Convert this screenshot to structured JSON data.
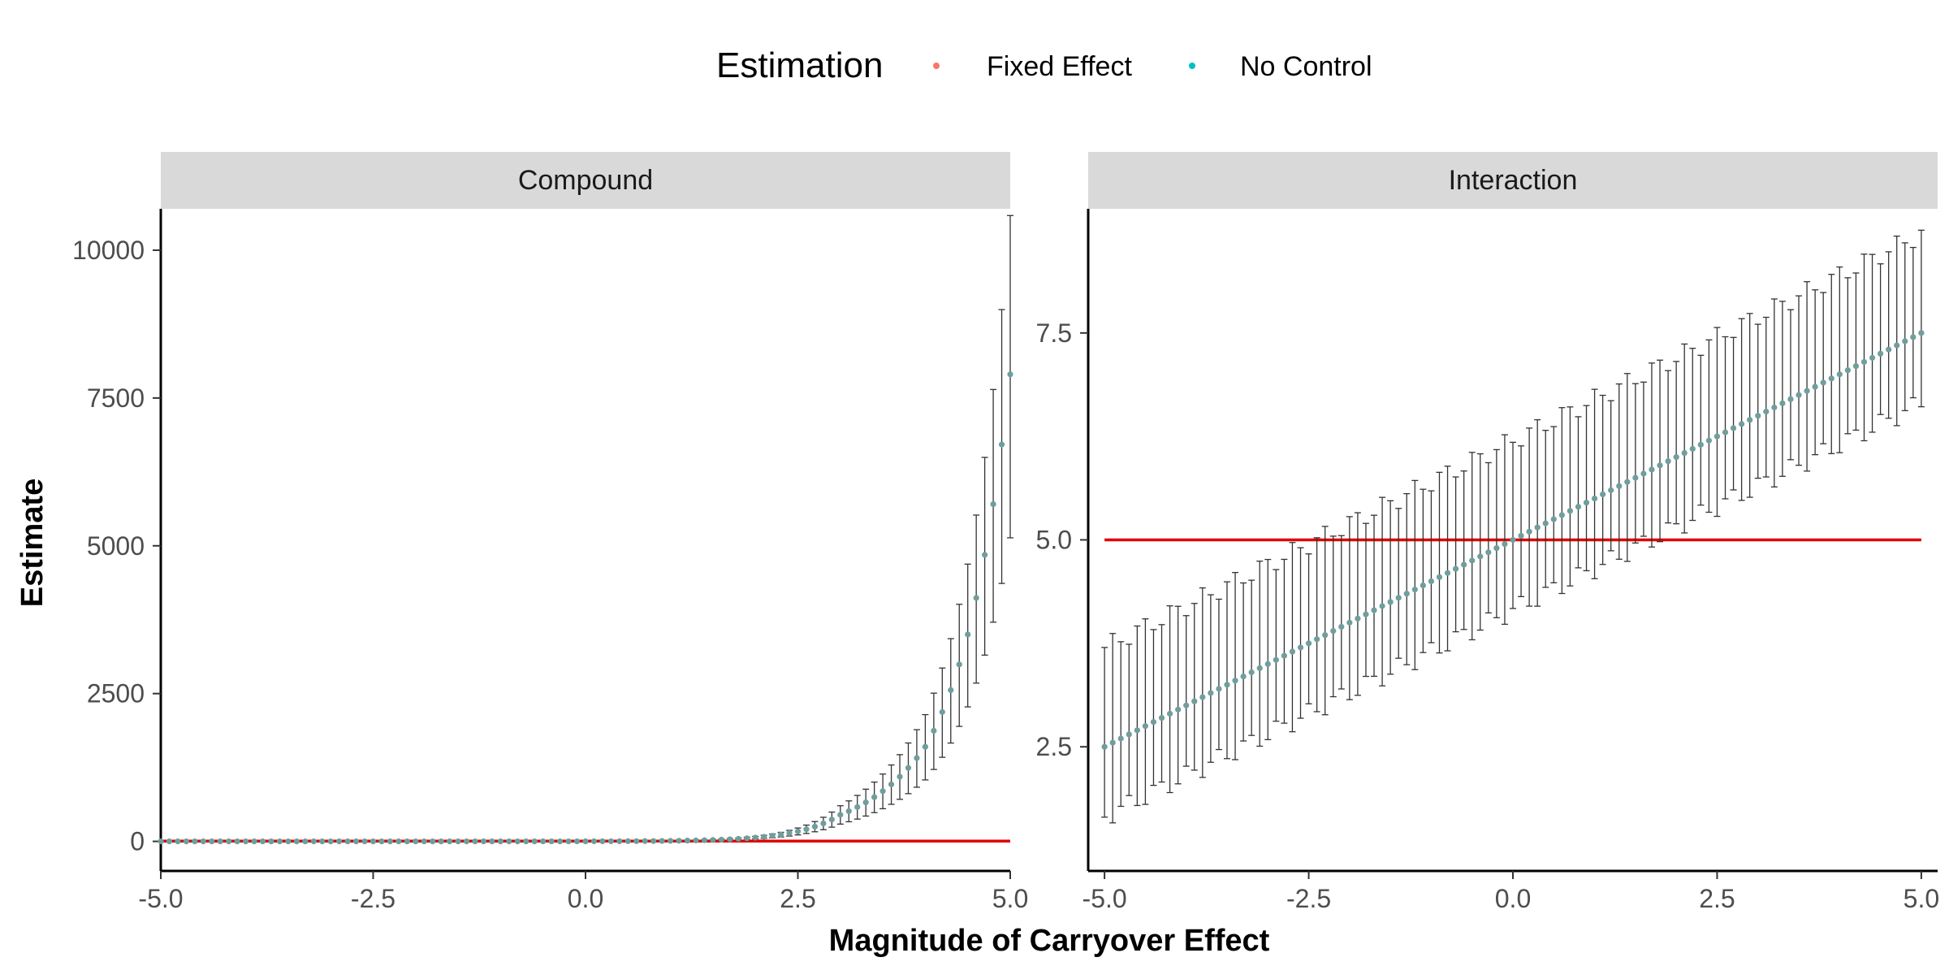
{
  "legend": {
    "title": "Estimation",
    "placement": "top",
    "items": [
      {
        "label": "Fixed Effect",
        "color": "#F8766D"
      },
      {
        "label": "No Control",
        "color": "#00BFC4"
      }
    ]
  },
  "axis_titles": {
    "x": "Magnitude of Carryover Effect",
    "y": "Estimate"
  },
  "chart_data": [
    {
      "type": "scatter",
      "panel": "Compound",
      "xlim": [
        -5.0,
        5.0
      ],
      "ylim": [
        -500,
        10700
      ],
      "x_ticks": [
        -5.0,
        -2.5,
        0.0,
        2.5,
        5.0
      ],
      "x_tick_labels": [
        "-5.0",
        "-2.5",
        "0.0",
        "2.5",
        "5.0"
      ],
      "y_ticks": [
        0,
        2500,
        5000,
        7500,
        10000
      ],
      "y_tick_labels": [
        "0",
        "2500",
        "5000",
        "7500",
        "10000"
      ],
      "reference_line": {
        "y": 5,
        "color": "#E00000"
      },
      "x": {
        "from": -5.0,
        "to": 5.0,
        "step": 0.1
      },
      "estimate_curve": {
        "form": "exp",
        "coefficient": 0.0005,
        "rate": 1.35,
        "anchors_x": [
          3.0,
          3.5,
          4.0,
          4.5,
          5.0
        ],
        "anchors_y": [
          450,
          850,
          1600,
          3500,
          7900
        ]
      },
      "interval": {
        "lower_fraction": 0.35,
        "upper_fraction": 0.34
      },
      "grid": false
    },
    {
      "type": "scatter",
      "panel": "Interaction",
      "xlim": [
        -5.2,
        5.2
      ],
      "ylim": [
        1.0,
        9.0
      ],
      "x_ticks": [
        -5.0,
        -2.5,
        0.0,
        2.5,
        5.0
      ],
      "x_tick_labels": [
        "-5.0",
        "-2.5",
        "0.0",
        "2.5",
        "5.0"
      ],
      "y_ticks": [
        2.5,
        5.0,
        7.5
      ],
      "y_tick_labels": [
        "2.5",
        "5.0",
        "7.5"
      ],
      "reference_line": {
        "y": 5.0,
        "color": "#E00000"
      },
      "x": {
        "from": -5.0,
        "to": 5.0,
        "step": 0.1
      },
      "estimate_line": {
        "intercept": 5.0,
        "slope": 0.5
      },
      "interval": {
        "lower_half_width": 0.85,
        "upper_half_width": 1.2
      },
      "grid": false
    }
  ]
}
